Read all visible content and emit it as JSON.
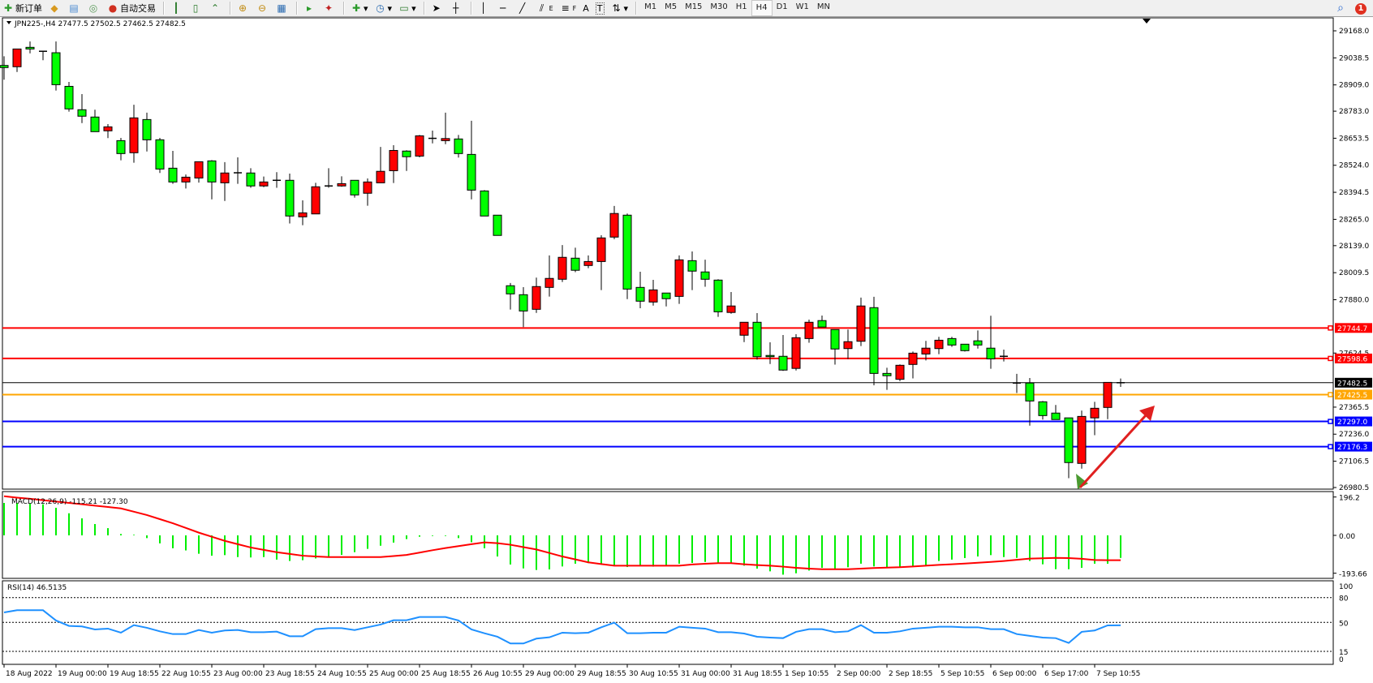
{
  "toolbar": {
    "new_order_label": "新订单",
    "auto_trading_label": "自动交易",
    "icons": [
      "new-order-icon",
      "history-icon",
      "terminal-icon",
      "signal-icon",
      "auto-trading-icon",
      "bar-chart-icon",
      "candlestick-icon",
      "line-chart-icon",
      "zoom-in-icon",
      "zoom-out-icon",
      "tile-windows-icon",
      "chart-shift-icon",
      "auto-scroll-icon",
      "indicators-icon",
      "periods-icon",
      "templates-icon",
      "cursor-icon",
      "crosshair-icon",
      "vertical-line-icon",
      "horizontal-line-icon",
      "trendline-icon",
      "fibonacci-icon",
      "text-icon",
      "text-label-icon",
      "arrows-icon"
    ],
    "fib_label": "E",
    "fibf_label": "F",
    "text_label": "A",
    "textlabel_label": "T",
    "timeframes": [
      "M1",
      "M5",
      "M15",
      "M30",
      "H1",
      "H4",
      "D1",
      "W1",
      "MN"
    ],
    "active_timeframe": "H4",
    "notification_count": "1"
  },
  "chart": {
    "symbol_info": "JPN225-,H4  27477.5 27502.5 27462.5 27482.5",
    "colors": {
      "bull": "#ff0000",
      "bear": "#00ff00",
      "macd_hist": "#00ee00",
      "macd_signal": "#ff0000",
      "rsi": "#1e90ff"
    },
    "price_labels": [
      "29168.0",
      "29038.5",
      "28909.0",
      "28783.0",
      "28653.5",
      "28524.0",
      "28394.5",
      "28265.0",
      "28139.0",
      "28009.5",
      "27880.0",
      "27624.5",
      "27365.5",
      "27236.0",
      "27106.5",
      "26980.5"
    ],
    "levels": [
      {
        "price": 27744.7,
        "label": "27744.7",
        "color": "#ff0000"
      },
      {
        "price": 27598.6,
        "label": "27598.6",
        "color": "#ff0000"
      },
      {
        "price": 27482.5,
        "label": "27482.5",
        "color": "#000000"
      },
      {
        "price": 27425.5,
        "label": "27425.5",
        "color": "#ffa500"
      },
      {
        "price": 27297.0,
        "label": "27297.0",
        "color": "#0000ff"
      },
      {
        "price": 27176.3,
        "label": "27176.3",
        "color": "#0000ff"
      }
    ],
    "time_labels": [
      {
        "bar": 1,
        "label": "18 Aug 2022"
      },
      {
        "bar": 5,
        "label": "19 Aug 00:00"
      },
      {
        "bar": 9,
        "label": "19 Aug 18:55"
      },
      {
        "bar": 13,
        "label": "22 Aug 10:55"
      },
      {
        "bar": 17,
        "label": "23 Aug 00:00"
      },
      {
        "bar": 21,
        "label": "23 Aug 18:55"
      },
      {
        "bar": 25,
        "label": "24 Aug 10:55"
      },
      {
        "bar": 29,
        "label": "25 Aug 00:00"
      },
      {
        "bar": 33,
        "label": "25 Aug 18:55"
      },
      {
        "bar": 37,
        "label": "26 Aug 10:55"
      },
      {
        "bar": 41,
        "label": "29 Aug 00:00"
      },
      {
        "bar": 45,
        "label": "29 Aug 18:55"
      },
      {
        "bar": 49,
        "label": "30 Aug 10:55"
      },
      {
        "bar": 53,
        "label": "31 Aug 00:00"
      },
      {
        "bar": 57,
        "label": "31 Aug 18:55"
      },
      {
        "bar": 61,
        "label": "1 Sep 10:55"
      },
      {
        "bar": 65,
        "label": "2 Sep 00:00"
      },
      {
        "bar": 69,
        "label": "2 Sep 18:55"
      },
      {
        "bar": 73,
        "label": "5 Sep 10:55"
      },
      {
        "bar": 77,
        "label": "6 Sep 00:00"
      },
      {
        "bar": 81,
        "label": "6 Sep 17:00"
      },
      {
        "bar": 85,
        "label": "7 Sep 10:55"
      }
    ]
  },
  "chart_data": {
    "type": "candlestick",
    "symbol": "JPN225-",
    "timeframe": "H4",
    "ylim": [
      26980.5,
      29168.0
    ],
    "ohlc": [
      [
        29002,
        29046,
        28934,
        28992
      ],
      [
        28996,
        29081,
        28971,
        29081
      ],
      [
        29089,
        29117,
        29060,
        29081
      ],
      [
        29070,
        29070,
        29027,
        29070
      ],
      [
        29063,
        29117,
        28882,
        28910
      ],
      [
        28902,
        28923,
        28781,
        28794
      ],
      [
        28790,
        28865,
        28726,
        28759
      ],
      [
        28755,
        28790,
        28685,
        28685
      ],
      [
        28689,
        28721,
        28654,
        28708
      ],
      [
        28642,
        28655,
        28548,
        28580
      ],
      [
        28584,
        28814,
        28536,
        28751
      ],
      [
        28743,
        28776,
        28590,
        28646
      ],
      [
        28646,
        28655,
        28487,
        28506
      ],
      [
        28510,
        28593,
        28435,
        28444
      ],
      [
        28444,
        28480,
        28413,
        28467
      ],
      [
        28463,
        28541,
        28441,
        28541
      ],
      [
        28545,
        28549,
        28361,
        28444
      ],
      [
        28440,
        28539,
        28353,
        28487
      ],
      [
        28486,
        28562,
        28435,
        28488
      ],
      [
        28487,
        28510,
        28416,
        28425
      ],
      [
        28425,
        28470,
        28419,
        28444
      ],
      [
        28452,
        28491,
        28416,
        28452
      ],
      [
        28452,
        28484,
        28245,
        28281
      ],
      [
        28277,
        28356,
        28237,
        28296
      ],
      [
        28291,
        28440,
        28291,
        28421
      ],
      [
        28425,
        28510,
        28416,
        28425
      ],
      [
        28425,
        28471,
        28421,
        28436
      ],
      [
        28452,
        28452,
        28369,
        28382
      ],
      [
        28390,
        28461,
        28330,
        28444
      ],
      [
        28440,
        28612,
        28440,
        28495
      ],
      [
        28498,
        28620,
        28439,
        28595
      ],
      [
        28592,
        28596,
        28497,
        28565
      ],
      [
        28568,
        28669,
        28562,
        28665
      ],
      [
        28652,
        28690,
        28629,
        28653
      ],
      [
        28642,
        28776,
        28625,
        28652
      ],
      [
        28650,
        28669,
        28561,
        28580
      ],
      [
        28576,
        28737,
        28361,
        28405
      ],
      [
        28401,
        28405,
        28281,
        28281
      ],
      [
        28285,
        28285,
        28188,
        28188
      ],
      [
        27947,
        27960,
        27833,
        27908
      ],
      [
        27904,
        27940,
        27749,
        27826
      ],
      [
        27834,
        27986,
        27817,
        27943
      ],
      [
        27939,
        28092,
        27895,
        27982
      ],
      [
        27978,
        28142,
        27965,
        28083
      ],
      [
        28079,
        28129,
        28012,
        28021
      ],
      [
        28044,
        28092,
        28031,
        28063
      ],
      [
        28063,
        28189,
        27926,
        28176
      ],
      [
        28180,
        28329,
        28170,
        28293
      ],
      [
        28285,
        28293,
        27883,
        27931
      ],
      [
        27939,
        28014,
        27839,
        27873
      ],
      [
        27869,
        27975,
        27852,
        27927
      ],
      [
        27912,
        27912,
        27848,
        27885
      ],
      [
        27896,
        28092,
        27860,
        28071
      ],
      [
        28067,
        28111,
        27926,
        28017
      ],
      [
        28013,
        28072,
        27942,
        27978
      ],
      [
        27974,
        27978,
        27798,
        27822
      ],
      [
        27819,
        27917,
        27813,
        27850
      ],
      [
        27710,
        27772,
        27677,
        27772
      ],
      [
        27772,
        27816,
        27593,
        27607
      ],
      [
        27613,
        27676,
        27572,
        27607
      ],
      [
        27609,
        27711,
        27539,
        27543
      ],
      [
        27551,
        27715,
        27541,
        27698
      ],
      [
        27694,
        27785,
        27674,
        27772
      ],
      [
        27780,
        27804,
        27749,
        27749
      ],
      [
        27737,
        27737,
        27569,
        27644
      ],
      [
        27646,
        27737,
        27596,
        27679
      ],
      [
        27681,
        27890,
        27658,
        27850
      ],
      [
        27842,
        27894,
        27470,
        27527
      ],
      [
        27527,
        27554,
        27448,
        27516
      ],
      [
        27499,
        27570,
        27490,
        27566
      ],
      [
        27570,
        27632,
        27503,
        27624
      ],
      [
        27620,
        27683,
        27589,
        27648
      ],
      [
        27646,
        27702,
        27619,
        27686
      ],
      [
        27694,
        27702,
        27654,
        27663
      ],
      [
        27667,
        27667,
        27632,
        27636
      ],
      [
        27683,
        27733,
        27646,
        27663
      ],
      [
        27648,
        27803,
        27549,
        27597
      ],
      [
        27608,
        27641,
        27584,
        27609
      ],
      [
        27481,
        27525,
        27433,
        27481
      ],
      [
        27481,
        27505,
        27277,
        27395
      ],
      [
        27391,
        27395,
        27306,
        27325
      ],
      [
        27337,
        27376,
        27306,
        27306
      ],
      [
        27314,
        27314,
        27025,
        27100
      ],
      [
        27096,
        27349,
        27071,
        27321
      ],
      [
        27314,
        27391,
        27231,
        27360
      ],
      [
        27364,
        27484,
        27308,
        27484
      ],
      [
        27477.5,
        27502.5,
        27462.5,
        27482.5
      ]
    ],
    "macd": {
      "label": "MACD(12,26,9) -115.21 -127.30",
      "ylim": [
        -193.66,
        196.2
      ],
      "axis_labels": [
        "196.2",
        "0.00",
        "-193.66"
      ],
      "histogram": [
        166,
        166,
        162,
        159,
        141,
        113,
        87,
        58,
        37,
        7,
        3,
        -14,
        -41,
        -66,
        -77,
        -94,
        -104,
        -101,
        -111,
        -113,
        -111,
        -124,
        -131,
        -127,
        -118,
        -111,
        -100,
        -86,
        -69,
        -53,
        -37,
        -19,
        -7,
        -3,
        -3,
        -14,
        -35,
        -66,
        -108,
        -149,
        -169,
        -177,
        -174,
        -159,
        -145,
        -142,
        -150,
        -155,
        -162,
        -156,
        -160,
        -155,
        -145,
        -141,
        -136,
        -141,
        -141,
        -155,
        -170,
        -184,
        -201,
        -194,
        -180,
        -166,
        -170,
        -163,
        -145,
        -159,
        -166,
        -163,
        -159,
        -152,
        -131,
        -124,
        -116,
        -108,
        -101,
        -111,
        -115,
        -131,
        -148,
        -173,
        -173,
        -166,
        -145,
        -145,
        -115.21
      ],
      "signal": [
        200,
        193,
        187,
        180,
        173,
        166,
        159,
        152,
        145,
        138,
        121,
        104,
        83,
        62,
        38,
        14,
        -7,
        -28,
        -45,
        -62,
        -74,
        -86,
        -95,
        -104,
        -108,
        -111,
        -111,
        -111,
        -111,
        -111,
        -106,
        -100,
        -88,
        -76,
        -65,
        -55,
        -45,
        -36,
        -40,
        -48,
        -60,
        -72,
        -90,
        -108,
        -123,
        -138,
        -147,
        -155,
        -155,
        -155,
        -155,
        -155,
        -155,
        -149,
        -145,
        -142,
        -142,
        -148,
        -152,
        -155,
        -160,
        -166,
        -170,
        -173,
        -173,
        -173,
        -170,
        -167,
        -165,
        -163,
        -159,
        -155,
        -151,
        -148,
        -144,
        -140,
        -136,
        -131,
        -125,
        -119,
        -117,
        -115,
        -116,
        -120,
        -126,
        -127,
        -127.3
      ]
    },
    "rsi": {
      "label": "RSI(14) 46.5135",
      "levels": [
        80,
        50,
        15
      ],
      "axis_labels": [
        "100",
        "80",
        "50",
        "15",
        "0"
      ],
      "values": [
        62.1,
        64.7,
        64.7,
        64.7,
        52.3,
        45.8,
        45.1,
        41.5,
        42.5,
        37.6,
        46.7,
        43.5,
        39.2,
        35.9,
        35.9,
        40.8,
        37.6,
        40.2,
        40.8,
        38.2,
        38.2,
        38.9,
        33.3,
        33.3,
        41.8,
        43.1,
        43.1,
        40.8,
        44.1,
        47.4,
        52.6,
        52.6,
        56.5,
        56.5,
        56.5,
        52.3,
        41.5,
        36.9,
        32.7,
        24.5,
        24.5,
        30.4,
        32.0,
        37.6,
        36.9,
        37.6,
        44.1,
        49.7,
        36.9,
        36.9,
        37.6,
        37.6,
        44.8,
        43.5,
        42.5,
        38.2,
        38.2,
        36.6,
        32.7,
        31.7,
        31.0,
        38.6,
        41.8,
        41.8,
        38.2,
        39.2,
        46.7,
        37.6,
        37.6,
        39.2,
        42.5,
        43.5,
        44.8,
        44.8,
        44.1,
        44.1,
        41.8,
        41.8,
        35.9,
        33.7,
        31.7,
        31.0,
        25.2,
        38.6,
        40.2,
        46.4,
        46.5135
      ]
    }
  }
}
